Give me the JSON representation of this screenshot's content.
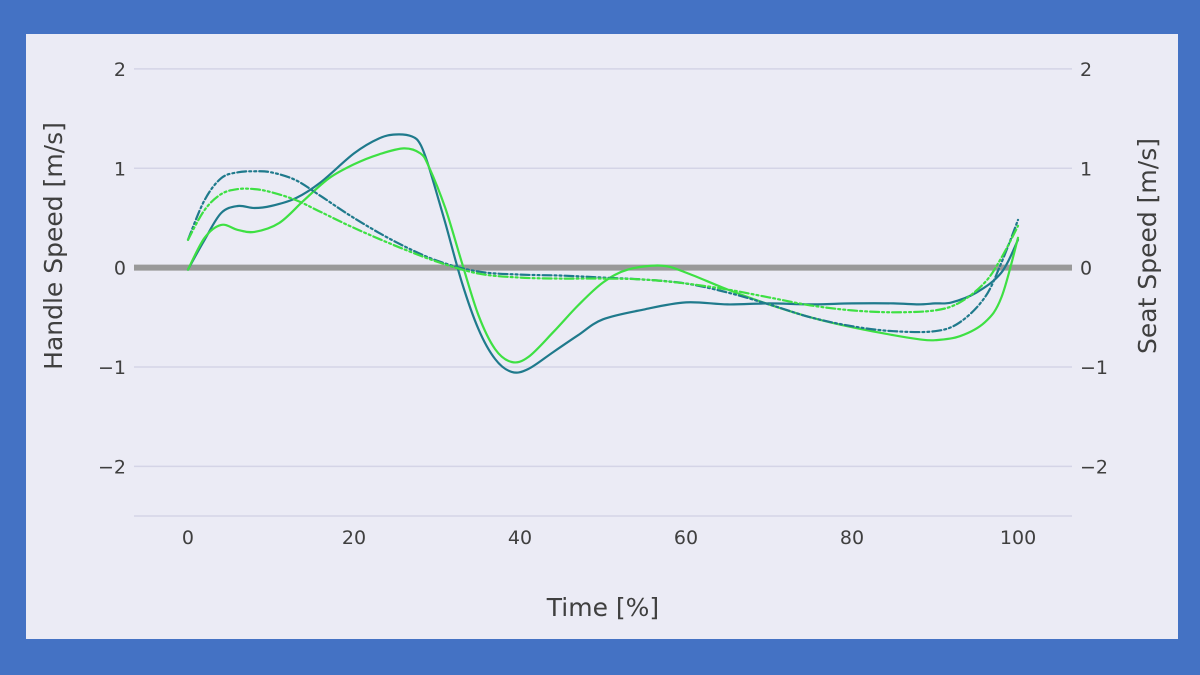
{
  "chart_data": {
    "type": "line",
    "title": "",
    "xlabel": "Time [%]",
    "ylabel": "Handle Speed [m/s]",
    "y2label": "Seat Speed [m/s]",
    "xlim": [
      -6.5,
      106.5
    ],
    "ylim": [
      -2.5,
      2.1
    ],
    "x_ticks": [
      0,
      20,
      40,
      60,
      80,
      100
    ],
    "y_ticks": [
      -2,
      -1,
      0,
      1,
      2
    ],
    "y_tick_labels": [
      "−2",
      "−1",
      "0",
      "1",
      "2"
    ],
    "grid": true,
    "legend": "none",
    "zero_line": {
      "y": 0,
      "color": "#999999"
    },
    "series": [
      {
        "name": "handle-speed-teal",
        "axis": "left",
        "color": "#1f7a8c",
        "dash": "solid",
        "x": [
          0,
          2,
          4,
          6,
          8,
          10,
          13,
          16,
          20,
          23,
          25,
          27,
          28,
          29,
          31,
          33,
          35,
          37,
          39,
          41,
          44,
          47,
          50,
          55,
          60,
          65,
          70,
          75,
          80,
          85,
          88,
          90,
          92,
          95,
          98,
          100
        ],
        "y": [
          -0.02,
          0.28,
          0.55,
          0.62,
          0.6,
          0.62,
          0.7,
          0.86,
          1.15,
          1.3,
          1.34,
          1.32,
          1.24,
          1.02,
          0.45,
          -0.15,
          -0.62,
          -0.92,
          -1.05,
          -1.02,
          -0.85,
          -0.68,
          -0.52,
          -0.42,
          -0.35,
          -0.37,
          -0.36,
          -0.37,
          -0.36,
          -0.36,
          -0.37,
          -0.36,
          -0.35,
          -0.25,
          -0.05,
          0.28
        ]
      },
      {
        "name": "handle-speed-green",
        "axis": "left",
        "color": "#3ee043",
        "dash": "solid",
        "x": [
          0,
          2,
          4,
          6,
          8,
          11,
          14,
          17,
          20,
          23,
          26,
          28,
          29,
          31,
          33,
          35,
          37,
          39,
          41,
          44,
          47,
          50,
          53,
          57,
          60,
          65,
          70,
          75,
          80,
          85,
          88,
          90,
          93,
          96,
          98,
          100
        ],
        "y": [
          -0.02,
          0.3,
          0.43,
          0.38,
          0.36,
          0.45,
          0.68,
          0.9,
          1.04,
          1.14,
          1.2,
          1.15,
          1.02,
          0.6,
          0.05,
          -0.48,
          -0.82,
          -0.95,
          -0.9,
          -0.65,
          -0.38,
          -0.15,
          -0.02,
          0.02,
          -0.05,
          -0.22,
          -0.37,
          -0.5,
          -0.6,
          -0.68,
          -0.72,
          -0.73,
          -0.69,
          -0.55,
          -0.3,
          0.3
        ]
      },
      {
        "name": "seat-speed-teal",
        "axis": "right",
        "color": "#1f7a8c",
        "dash": "dashdot",
        "x": [
          0,
          2,
          4,
          6,
          8,
          10,
          13,
          16,
          20,
          25,
          30,
          35,
          40,
          45,
          50,
          55,
          60,
          65,
          70,
          75,
          80,
          85,
          90,
          93,
          96,
          98,
          100
        ],
        "y": [
          0.28,
          0.68,
          0.9,
          0.96,
          0.97,
          0.96,
          0.88,
          0.72,
          0.5,
          0.26,
          0.07,
          -0.04,
          -0.07,
          -0.08,
          -0.1,
          -0.12,
          -0.16,
          -0.25,
          -0.37,
          -0.5,
          -0.59,
          -0.64,
          -0.64,
          -0.55,
          -0.3,
          0.05,
          0.48
        ]
      },
      {
        "name": "seat-speed-green",
        "axis": "right",
        "color": "#3ee043",
        "dash": "dashdot",
        "x": [
          0,
          2,
          4,
          6,
          8,
          10,
          13,
          16,
          20,
          25,
          30,
          35,
          40,
          45,
          50,
          55,
          60,
          65,
          70,
          75,
          80,
          85,
          90,
          93,
          96,
          98,
          100
        ],
        "y": [
          0.28,
          0.58,
          0.74,
          0.79,
          0.79,
          0.76,
          0.68,
          0.56,
          0.4,
          0.22,
          0.06,
          -0.06,
          -0.1,
          -0.11,
          -0.11,
          -0.12,
          -0.16,
          -0.22,
          -0.3,
          -0.38,
          -0.43,
          -0.45,
          -0.43,
          -0.35,
          -0.15,
          0.1,
          0.42
        ]
      }
    ]
  }
}
